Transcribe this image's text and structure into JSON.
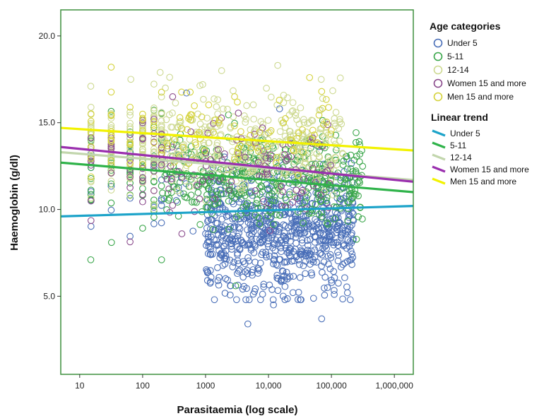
{
  "chart_data": {
    "type": "scatter",
    "xlabel": "Parasitaemia (log scale)",
    "ylabel": "Haemoglobin (g/dl)",
    "x_scale": "log",
    "xlim": [
      5,
      2000000
    ],
    "ylim": [
      0.5,
      21.5
    ],
    "x_ticks": [
      10,
      100,
      1000,
      10000,
      100000,
      1000000
    ],
    "x_tick_labels": [
      "10",
      "100",
      "1000",
      "10,000",
      "100,000",
      "1,000,000"
    ],
    "y_ticks": [
      5,
      10,
      15,
      20
    ],
    "y_tick_labels": [
      "5.0",
      "10.0",
      "15.0",
      "20.0"
    ],
    "grid": false,
    "legend_placement": "right",
    "legend_scatter_title": "Age categories",
    "legend_trend_title": "Linear trend",
    "point_series": [
      {
        "name": "Under 5",
        "color": "#4a6fb8",
        "clusters": [
          {
            "x_log_range": [
              3.0,
              5.35
            ],
            "y_mean": 8.8,
            "y_sd": 1.7,
            "count": 780
          },
          {
            "x_log_range": [
              1.2,
              3.0
            ],
            "y_mean": 11.5,
            "y_sd": 1.8,
            "count": 45
          }
        ],
        "extremes": [
          [
            4700,
            3.4
          ],
          [
            70000,
            3.7
          ],
          [
            12000,
            4.5
          ],
          [
            2500,
            5.6
          ],
          [
            180000,
            5.2
          ],
          [
            15000,
            15.8
          ],
          [
            20000,
            6.0
          ]
        ]
      },
      {
        "name": "5-11",
        "color": "#3aa64a",
        "clusters": [
          {
            "x_log_range": [
              2.3,
              5.5
            ],
            "y_mean": 11.8,
            "y_sd": 1.3,
            "count": 420
          },
          {
            "x_log_range": [
              1.2,
              2.3
            ],
            "y_mean": 12.6,
            "y_sd": 1.5,
            "count": 60
          }
        ],
        "extremes": [
          [
            15,
            7.1
          ],
          [
            32,
            8.1
          ],
          [
            200,
            7.1
          ],
          [
            3000,
            5.6
          ]
        ]
      },
      {
        "name": "12-14",
        "color": "#cdd991",
        "clusters": [
          {
            "x_log_range": [
              1.2,
              5.2
            ],
            "y_mean": 13.8,
            "y_sd": 1.3,
            "count": 480
          }
        ],
        "extremes": [
          [
            15,
            17.1
          ],
          [
            65,
            17.5
          ],
          [
            190,
            17.9
          ],
          [
            1800,
            18.0
          ],
          [
            14000,
            18.3
          ],
          [
            230,
            17.0
          ],
          [
            900,
            17.2
          ]
        ]
      },
      {
        "name": "Women 15 and more",
        "color": "#8a4a8c",
        "clusters": [
          {
            "x_log_range": [
              1.2,
              5.0
            ],
            "y_mean": 12.5,
            "y_sd": 1.4,
            "count": 130
          }
        ],
        "extremes": [
          [
            420,
            8.6
          ],
          [
            300,
            16.5
          ]
        ]
      },
      {
        "name": "Men 15 and more",
        "color": "#d4d23a",
        "clusters": [
          {
            "x_log_range": [
              1.2,
              5.0
            ],
            "y_mean": 14.3,
            "y_sd": 1.2,
            "count": 110
          }
        ],
        "extremes": [
          [
            45000,
            17.6
          ],
          [
            70000,
            16.8
          ]
        ]
      }
    ],
    "trend_series": [
      {
        "name": "Under 5",
        "color": "#1ca3c9",
        "x": [
          5,
          2000000
        ],
        "y": [
          9.6,
          10.2
        ]
      },
      {
        "name": "5-11",
        "color": "#2fb34a",
        "x": [
          5,
          2000000
        ],
        "y": [
          12.7,
          11.0
        ]
      },
      {
        "name": "12-14",
        "color": "#c2d6ad",
        "x": [
          5,
          2000000
        ],
        "y": [
          13.3,
          11.7
        ]
      },
      {
        "name": "Women 15 and more",
        "color": "#9a2fae",
        "x": [
          5,
          2000000
        ],
        "y": [
          13.6,
          11.6
        ]
      },
      {
        "name": "Men 15 and more",
        "color": "#f2f200",
        "x": [
          5,
          2000000
        ],
        "y": [
          14.7,
          13.4
        ]
      }
    ],
    "plot_frame_color": "#3d8f3d"
  }
}
